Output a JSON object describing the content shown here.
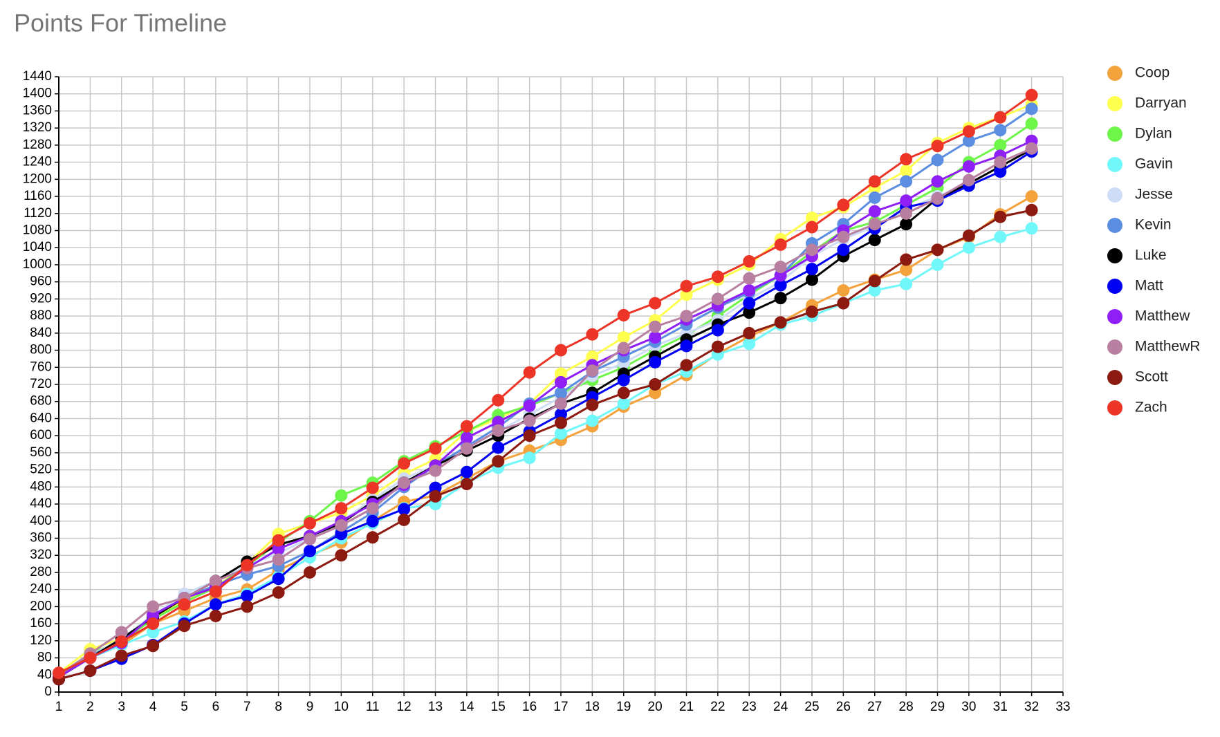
{
  "chart_data": {
    "type": "line",
    "title": "Points For Timeline",
    "x": [
      1,
      2,
      3,
      4,
      5,
      6,
      7,
      8,
      9,
      10,
      11,
      12,
      13,
      14,
      15,
      16,
      17,
      18,
      19,
      20,
      21,
      22,
      23,
      24,
      25,
      26,
      27,
      28,
      29,
      30,
      31,
      32
    ],
    "xlim": [
      1,
      33
    ],
    "xticks": [
      1,
      2,
      3,
      4,
      5,
      6,
      7,
      8,
      9,
      10,
      11,
      12,
      13,
      14,
      15,
      16,
      17,
      18,
      19,
      20,
      21,
      22,
      23,
      24,
      25,
      26,
      27,
      28,
      29,
      30,
      31,
      32,
      33
    ],
    "ylim": [
      0,
      1440
    ],
    "yticks": [
      0,
      40,
      80,
      120,
      160,
      200,
      240,
      280,
      320,
      360,
      400,
      440,
      480,
      520,
      560,
      600,
      640,
      680,
      720,
      760,
      800,
      840,
      880,
      920,
      960,
      1000,
      1040,
      1080,
      1120,
      1160,
      1200,
      1240,
      1280,
      1320,
      1360,
      1400,
      1440
    ],
    "grid": true,
    "legend": "right",
    "series": [
      {
        "name": "Coop",
        "color": "#f4a23c",
        "values": [
          35,
          80,
          110,
          160,
          190,
          220,
          240,
          285,
          320,
          350,
          400,
          445,
          460,
          500,
          540,
          565,
          590,
          622,
          668,
          700,
          742,
          792,
          832,
          865,
          905,
          940,
          965,
          988,
          1035,
          1065,
          1118,
          1160
        ]
      },
      {
        "name": "Darryan",
        "color": "#ffff4d",
        "values": [
          45,
          100,
          125,
          175,
          215,
          245,
          300,
          370,
          395,
          420,
          460,
          510,
          545,
          610,
          640,
          675,
          745,
          785,
          830,
          870,
          930,
          965,
          1000,
          1060,
          1110,
          1135,
          1180,
          1220,
          1285,
          1320,
          1345,
          1375
        ]
      },
      {
        "name": "Dylan",
        "color": "#6ef54a",
        "values": [
          40,
          90,
          120,
          170,
          210,
          245,
          295,
          350,
          400,
          460,
          490,
          540,
          575,
          610,
          648,
          670,
          700,
          730,
          760,
          800,
          835,
          880,
          930,
          975,
          1030,
          1080,
          1100,
          1140,
          1180,
          1240,
          1280,
          1330
        ]
      },
      {
        "name": "Gavin",
        "color": "#6ff7fa",
        "values": [
          35,
          80,
          110,
          140,
          165,
          205,
          230,
          270,
          315,
          360,
          395,
          430,
          440,
          490,
          525,
          548,
          605,
          635,
          675,
          720,
          750,
          790,
          815,
          860,
          880,
          910,
          940,
          955,
          1000,
          1040,
          1065,
          1085
        ]
      },
      {
        "name": "Jesse",
        "color": "#cfdcf5",
        "values": [
          40,
          85,
          125,
          180,
          230,
          260,
          295,
          325,
          360,
          400,
          450,
          500,
          530,
          575,
          610,
          650,
          690,
          740,
          770,
          810,
          840,
          870,
          920,
          960,
          1020,
          1060,
          1090,
          1130,
          1160,
          1190,
          1230,
          1270
        ]
      },
      {
        "name": "Kevin",
        "color": "#5b8de0",
        "values": [
          35,
          85,
          118,
          180,
          220,
          250,
          275,
          295,
          330,
          375,
          420,
          480,
          530,
          575,
          620,
          675,
          700,
          750,
          785,
          820,
          860,
          900,
          935,
          975,
          1050,
          1095,
          1157,
          1195,
          1245,
          1290,
          1315,
          1365
        ]
      },
      {
        "name": "Luke",
        "color": "#000000",
        "values": [
          35,
          80,
          125,
          175,
          220,
          260,
          305,
          345,
          365,
          395,
          445,
          490,
          530,
          565,
          600,
          640,
          675,
          700,
          745,
          785,
          825,
          860,
          888,
          922,
          965,
          1020,
          1058,
          1095,
          1155,
          1190,
          1230,
          1270
        ]
      },
      {
        "name": "Matt",
        "color": "#0000f5",
        "values": [
          30,
          50,
          78,
          110,
          160,
          205,
          225,
          265,
          330,
          370,
          400,
          428,
          478,
          515,
          572,
          610,
          650,
          690,
          730,
          772,
          810,
          847,
          910,
          952,
          990,
          1035,
          1085,
          1135,
          1150,
          1185,
          1218,
          1265
        ]
      },
      {
        "name": "Matthew",
        "color": "#8f1ff5",
        "values": [
          35,
          80,
          115,
          180,
          220,
          245,
          290,
          335,
          365,
          400,
          440,
          485,
          530,
          595,
          632,
          670,
          725,
          765,
          800,
          830,
          872,
          905,
          940,
          975,
          1020,
          1080,
          1125,
          1150,
          1195,
          1230,
          1255,
          1290
        ]
      },
      {
        "name": "MatthewR",
        "color": "#b87fa0",
        "values": [
          40,
          90,
          140,
          200,
          220,
          260,
          290,
          310,
          358,
          390,
          430,
          490,
          518,
          570,
          612,
          635,
          675,
          752,
          805,
          855,
          880,
          920,
          968,
          995,
          1035,
          1065,
          1095,
          1120,
          1155,
          1198,
          1240,
          1272
        ]
      },
      {
        "name": "Scott",
        "color": "#8c1a10",
        "values": [
          30,
          50,
          85,
          108,
          155,
          178,
          200,
          233,
          280,
          320,
          362,
          403,
          458,
          487,
          540,
          600,
          630,
          672,
          700,
          720,
          765,
          808,
          840,
          865,
          890,
          910,
          962,
          1012,
          1035,
          1068,
          1112,
          1128
        ]
      },
      {
        "name": "Zach",
        "color": "#ec3427",
        "values": [
          45,
          80,
          118,
          160,
          205,
          235,
          297,
          355,
          395,
          430,
          478,
          535,
          570,
          622,
          683,
          748,
          800,
          837,
          882,
          910,
          950,
          972,
          1008,
          1047,
          1088,
          1140,
          1195,
          1247,
          1278,
          1312,
          1345,
          1397
        ]
      }
    ]
  }
}
